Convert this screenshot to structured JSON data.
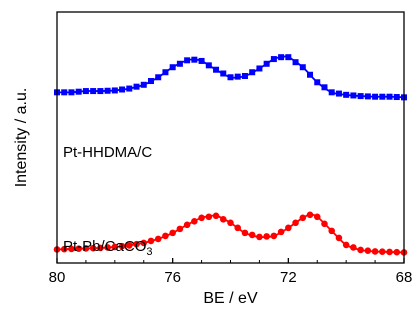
{
  "chart_data": {
    "type": "scatter",
    "title": "",
    "xlabel": "BE / eV",
    "ylabel": "Intensity / a.u.",
    "xlim": [
      80,
      68
    ],
    "x_reversed": true,
    "x_ticks": [
      80,
      76,
      72,
      68
    ],
    "x_tick_labels": [
      "80",
      "76",
      "72",
      "68"
    ],
    "y_ticks_shown": false,
    "ylim": [
      0,
      1
    ],
    "grid": false,
    "legend": "none",
    "annotations": [
      {
        "text_parts": [
          "Pt-HHDMA/C"
        ],
        "series": "blue"
      },
      {
        "text_parts": [
          "Pt-Pb/CaCO",
          "3"
        ],
        "series": "red"
      }
    ],
    "series": [
      {
        "label": "Pt-HHDMA/C",
        "color": "#0000ff",
        "marker": "square",
        "x": [
          80.0,
          79.5,
          79.0,
          78.5,
          78.0,
          77.5,
          77.0,
          76.5,
          76.0,
          75.5,
          75.25,
          75.0,
          74.5,
          74.0,
          73.5,
          73.0,
          72.5,
          72.25,
          72.0,
          71.5,
          71.0,
          70.5,
          70.0,
          69.5,
          69.0,
          68.5,
          68.0
        ],
        "y": [
          0.6,
          0.6,
          0.61,
          0.61,
          0.615,
          0.63,
          0.66,
          0.72,
          0.8,
          0.855,
          0.86,
          0.85,
          0.78,
          0.72,
          0.73,
          0.79,
          0.865,
          0.88,
          0.88,
          0.8,
          0.68,
          0.6,
          0.58,
          0.57,
          0.565,
          0.565,
          0.56
        ]
      },
      {
        "label": "Pt-Pb/CaCO3",
        "color": "#ff0000",
        "marker": "circle",
        "x": [
          80.0,
          79.5,
          79.0,
          78.5,
          78.0,
          77.5,
          77.0,
          76.5,
          76.0,
          75.5,
          75.0,
          74.5,
          74.0,
          73.5,
          73.0,
          72.5,
          72.0,
          71.5,
          71.25,
          71.0,
          70.5,
          70.0,
          69.5,
          69.0,
          68.5,
          68.0
        ],
        "y": [
          0.035,
          0.04,
          0.045,
          0.05,
          0.06,
          0.075,
          0.1,
          0.14,
          0.2,
          0.28,
          0.35,
          0.37,
          0.3,
          0.2,
          0.16,
          0.17,
          0.25,
          0.35,
          0.38,
          0.36,
          0.22,
          0.08,
          0.03,
          0.015,
          0.01,
          0.005
        ]
      }
    ]
  }
}
